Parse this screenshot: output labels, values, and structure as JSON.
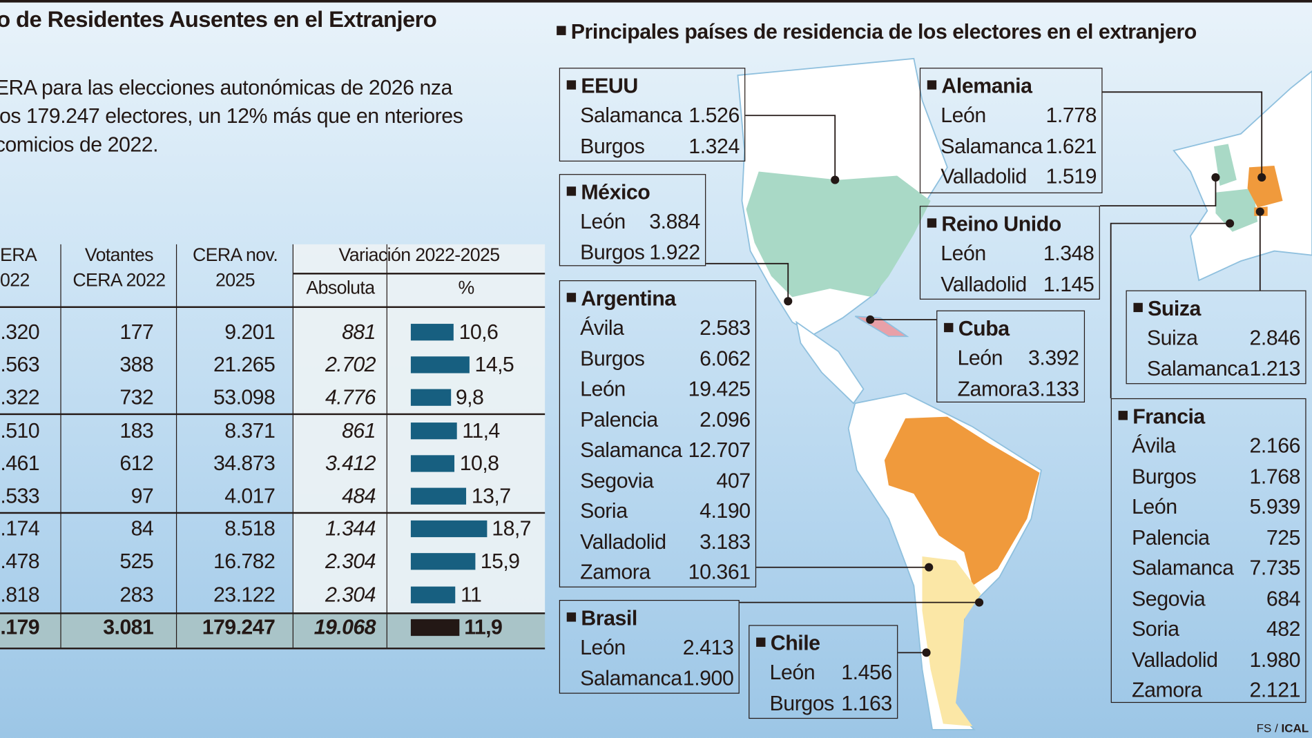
{
  "title": "o de Residentes Ausentes en el Extranjero",
  "lead": "ERA para las elecciones autonómicas de 2026 nza los 179.247 electores, un 12% más que en nteriores comicios de 2022.",
  "table": {
    "headers": {
      "c1": "ERA 022",
      "c2": "Votantes CERA 2022",
      "c3": "CERA nov. 2025",
      "var": "Variación 2022-2025",
      "abs": "Absoluta",
      "pct": "%"
    },
    "rows": [
      {
        "c1": ".320",
        "c2": "177",
        "c3": "9.201",
        "abs": "881",
        "pct": "10,6",
        "pct_value": 10.6
      },
      {
        "c1": ".563",
        "c2": "388",
        "c3": "21.265",
        "abs": "2.702",
        "pct": "14,5",
        "pct_value": 14.5
      },
      {
        "c1": ".322",
        "c2": "732",
        "c3": "53.098",
        "abs": "4.776",
        "pct": "9,8",
        "pct_value": 9.8
      },
      {
        "c1": ".510",
        "c2": "183",
        "c3": "8.371",
        "abs": "861",
        "pct": "11,4",
        "pct_value": 11.4
      },
      {
        "c1": ".461",
        "c2": "612",
        "c3": "34.873",
        "abs": "3.412",
        "pct": "10,8",
        "pct_value": 10.8
      },
      {
        "c1": ".533",
        "c2": "97",
        "c3": "4.017",
        "abs": "484",
        "pct": "13,7",
        "pct_value": 13.7
      },
      {
        "c1": ".174",
        "c2": "84",
        "c3": "8.518",
        "abs": "1.344",
        "pct": "18,7",
        "pct_value": 18.7
      },
      {
        "c1": ".478",
        "c2": "525",
        "c3": "16.782",
        "abs": "2.304",
        "pct": "15,9",
        "pct_value": 15.9
      },
      {
        "c1": ".818",
        "c2": "283",
        "c3": "23.122",
        "abs": "2.304",
        "pct": "11",
        "pct_value": 11
      }
    ],
    "total": {
      "c1": ".179",
      "c2": "3.081",
      "c3": "179.247",
      "abs": "19.068",
      "pct": "11,9",
      "pct_value": 11.9
    },
    "bar_color": "#175f80",
    "total_bar_color": "#231815"
  },
  "map": {
    "title": "Principales países de residencia de los electores en el extranjero",
    "colors": {
      "highlight_orange": "#f09a3c",
      "teal": "#a9d9c6",
      "pale_yellow": "#fbe7a6"
    },
    "boxes": [
      {
        "id": "eeuu",
        "name": "EEUU",
        "rows": [
          [
            "Salamanca",
            "1.526"
          ],
          [
            "Burgos",
            "1.324"
          ]
        ]
      },
      {
        "id": "mexico",
        "name": "México",
        "rows": [
          [
            "León",
            "3.884"
          ],
          [
            "Burgos",
            "1.922"
          ]
        ]
      },
      {
        "id": "argentina",
        "name": "Argentina",
        "rows": [
          [
            "Ávila",
            "2.583"
          ],
          [
            "Burgos",
            "6.062"
          ],
          [
            "León",
            "19.425"
          ],
          [
            "Palencia",
            "2.096"
          ],
          [
            "Salamanca",
            "12.707"
          ],
          [
            "Segovia",
            "407"
          ],
          [
            "Soria",
            "4.190"
          ],
          [
            "Valladolid",
            "3.183"
          ],
          [
            "Zamora",
            "10.361"
          ]
        ]
      },
      {
        "id": "brasil",
        "name": "Brasil",
        "rows": [
          [
            "León",
            "2.413"
          ],
          [
            "Salamanca",
            "1.900"
          ]
        ]
      },
      {
        "id": "chile",
        "name": "Chile",
        "rows": [
          [
            "León",
            "1.456"
          ],
          [
            "Burgos",
            "1.163"
          ]
        ]
      },
      {
        "id": "alemania",
        "name": "Alemania",
        "rows": [
          [
            "León",
            "1.778"
          ],
          [
            "Salamanca",
            "1.621"
          ],
          [
            "Valladolid",
            "1.519"
          ]
        ]
      },
      {
        "id": "reino-unido",
        "name": "Reino Unido",
        "rows": [
          [
            "León",
            "1.348"
          ],
          [
            "Valladolid",
            "1.145"
          ]
        ]
      },
      {
        "id": "cuba",
        "name": "Cuba",
        "rows": [
          [
            "León",
            "3.392"
          ],
          [
            "Zamora",
            "3.133"
          ]
        ]
      },
      {
        "id": "suiza",
        "name": "Suiza",
        "rows": [
          [
            "Suiza",
            "2.846"
          ],
          [
            "Salamanca",
            "1.213"
          ]
        ]
      },
      {
        "id": "francia",
        "name": "Francia",
        "rows": [
          [
            "Ávila",
            "2.166"
          ],
          [
            "Burgos",
            "1.768"
          ],
          [
            "León",
            "5.939"
          ],
          [
            "Palencia",
            "725"
          ],
          [
            "Salamanca",
            "7.735"
          ],
          [
            "Segovia",
            "684"
          ],
          [
            "Soria",
            "482"
          ],
          [
            "Valladolid",
            "1.980"
          ],
          [
            "Zamora",
            "2.121"
          ]
        ]
      }
    ]
  },
  "credit": {
    "fs": "FS / ",
    "ical": "ICAL"
  }
}
